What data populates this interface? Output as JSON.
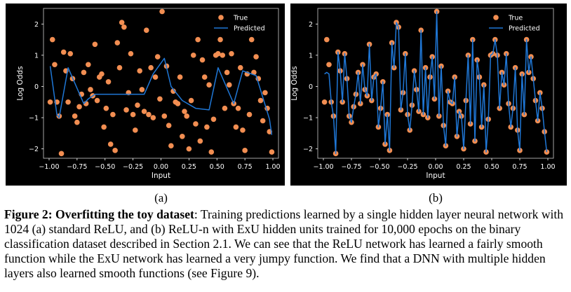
{
  "figure": {
    "caption_label": "Figure 2:",
    "caption_bold": "Overfitting the toy dataset",
    "caption_text": ": Training predictions learned by a single hidden layer neural network with 1024 (a) standard ReLU, and (b) ReLU-n with ExU hidden units trained for 10,000 epochs on the binary classification dataset described in Section 2.1. We can see that the ReLU network has learned a fairly smooth function while the ExU network has learned a very jumpy function. We find that a DNN with multiple hidden layers also learned smooth functions (see Figure 9)."
  },
  "colors": {
    "background": "#000000",
    "true_points": "#f28e52",
    "predicted_line": "#1f77d6",
    "text": "#ffffff"
  },
  "chart_data": [
    {
      "type": "scatter",
      "panel_label": "(a)",
      "xlabel": "Input",
      "ylabel": "Log Odds",
      "xlim": [
        -1.05,
        1.05
      ],
      "ylim": [
        -2.3,
        2.5
      ],
      "xticks": [
        -1.0,
        -0.75,
        -0.5,
        -0.25,
        0.0,
        0.25,
        0.5,
        0.75,
        1.0
      ],
      "xtick_labels": [
        "−1.00",
        "−0.75",
        "−0.50",
        "−0.25",
        "0.00",
        "0.25",
        "0.50",
        "0.75",
        "1.00"
      ],
      "yticks": [
        -2,
        -1,
        0,
        1,
        2
      ],
      "ytick_labels": [
        "−2",
        "−1",
        "0",
        "1",
        "2"
      ],
      "legend": {
        "placement": "top-right",
        "entries": [
          "True",
          "Predicted"
        ]
      },
      "series": [
        {
          "name": "True",
          "kind": "points",
          "x": [
            -0.99,
            -0.97,
            -0.95,
            -0.93,
            -0.91,
            -0.89,
            -0.87,
            -0.85,
            -0.83,
            -0.81,
            -0.79,
            -0.77,
            -0.75,
            -0.73,
            -0.71,
            -0.69,
            -0.67,
            -0.65,
            -0.63,
            -0.61,
            -0.59,
            -0.57,
            -0.55,
            -0.53,
            -0.51,
            -0.49,
            -0.47,
            -0.45,
            -0.43,
            -0.41,
            -0.39,
            -0.37,
            -0.35,
            -0.33,
            -0.31,
            -0.29,
            -0.27,
            -0.25,
            -0.23,
            -0.21,
            -0.19,
            -0.17,
            -0.15,
            -0.13,
            -0.11,
            -0.09,
            -0.07,
            -0.05,
            -0.03,
            -0.01,
            0.01,
            0.03,
            0.05,
            0.07,
            0.09,
            0.11,
            0.13,
            0.15,
            0.17,
            0.19,
            0.21,
            0.23,
            0.25,
            0.27,
            0.29,
            0.31,
            0.33,
            0.35,
            0.37,
            0.39,
            0.41,
            0.43,
            0.45,
            0.47,
            0.49,
            0.51,
            0.53,
            0.55,
            0.57,
            0.59,
            0.61,
            0.63,
            0.65,
            0.67,
            0.69,
            0.71,
            0.73,
            0.75,
            0.77,
            0.79,
            0.81,
            0.83,
            0.85,
            0.87,
            0.89,
            0.91,
            0.93,
            0.95,
            0.97,
            0.99
          ],
          "y": [
            -0.5,
            1.5,
            0.7,
            -0.5,
            -0.95,
            -2.15,
            1.1,
            0.5,
            -0.5,
            1.05,
            0.25,
            -0.95,
            -1.15,
            -0.65,
            -0.25,
            0.45,
            -0.55,
            0.7,
            -0.1,
            -0.3,
            1.35,
            -0.45,
            0.3,
            0.4,
            -1.3,
            -0.7,
            0.15,
            -1.85,
            -0.9,
            -2.05,
            1.4,
            0.6,
            2.05,
            1.9,
            -0.75,
            -0.2,
            1.05,
            -0.9,
            -1.4,
            -0.6,
            0.5,
            -0.1,
            -0.8,
            1.8,
            -0.9,
            0.6,
            -1.0,
            0.3,
            0.95,
            -0.4,
            2.4,
            -0.95,
            0.65,
            -1.25,
            -1.9,
            -0.15,
            -0.5,
            -0.55,
            0.3,
            -1.6,
            -0.8,
            -0.95,
            -2.0,
            -0.45,
            1.0,
            -1.2,
            1.5,
            -1.75,
            0.85,
            0.3,
            -1.3,
            0.05,
            -2.1,
            -1.05,
            1.0,
            1.05,
            1.5,
            1.0,
            -0.7,
            0.45,
            0.05,
            1.05,
            -0.55,
            -1.3,
            -0.7,
            0.6,
            -1.4,
            -2.05,
            0.4,
            -0.9,
            1.5,
            0.45,
            0.95,
            0.25,
            -0.45,
            -1.1,
            -0.2,
            -0.7,
            -1.45,
            -2.1
          ]
        },
        {
          "name": "Predicted",
          "kind": "line",
          "x": [
            -0.99,
            -0.93,
            -0.91,
            -0.83,
            -0.69,
            -0.65,
            -0.59,
            -0.51,
            -0.15,
            -0.07,
            0.03,
            0.09,
            0.19,
            0.31,
            0.43,
            0.51,
            0.65,
            0.73,
            0.85,
            0.91,
            0.97,
            0.99
          ],
          "y": [
            0.65,
            -0.9,
            -1.0,
            0.6,
            -0.55,
            -0.4,
            -0.25,
            -0.25,
            -0.25,
            0.4,
            0.9,
            0.0,
            -0.45,
            -0.7,
            -0.75,
            0.6,
            -0.55,
            0.5,
            0.35,
            -0.35,
            -1.05,
            -1.55
          ]
        }
      ]
    },
    {
      "type": "scatter",
      "panel_label": "(b)",
      "xlabel": "Input",
      "ylabel": "Log Odds",
      "xlim": [
        -1.05,
        1.05
      ],
      "ylim": [
        -2.3,
        2.5
      ],
      "xticks": [
        -1.0,
        -0.75,
        -0.5,
        -0.25,
        0.0,
        0.25,
        0.5,
        0.75,
        1.0
      ],
      "xtick_labels": [
        "−1.00",
        "−0.75",
        "−0.50",
        "−0.25",
        "0.00",
        "0.25",
        "0.50",
        "0.75",
        "1.00"
      ],
      "yticks": [
        -2,
        -1,
        0,
        1,
        2
      ],
      "ytick_labels": [
        "−2",
        "−1",
        "0",
        "1",
        "2"
      ],
      "legend": {
        "placement": "top-right",
        "entries": [
          "True",
          "Predicted"
        ]
      },
      "series": [
        {
          "name": "True",
          "kind": "points",
          "x": [
            -0.99,
            -0.97,
            -0.95,
            -0.93,
            -0.91,
            -0.89,
            -0.87,
            -0.85,
            -0.83,
            -0.81,
            -0.79,
            -0.77,
            -0.75,
            -0.73,
            -0.71,
            -0.69,
            -0.67,
            -0.65,
            -0.63,
            -0.61,
            -0.59,
            -0.57,
            -0.55,
            -0.53,
            -0.51,
            -0.49,
            -0.47,
            -0.45,
            -0.43,
            -0.41,
            -0.39,
            -0.37,
            -0.35,
            -0.33,
            -0.31,
            -0.29,
            -0.27,
            -0.25,
            -0.23,
            -0.21,
            -0.19,
            -0.17,
            -0.15,
            -0.13,
            -0.11,
            -0.09,
            -0.07,
            -0.05,
            -0.03,
            -0.01,
            0.01,
            0.03,
            0.05,
            0.07,
            0.09,
            0.11,
            0.13,
            0.15,
            0.17,
            0.19,
            0.21,
            0.23,
            0.25,
            0.27,
            0.29,
            0.31,
            0.33,
            0.35,
            0.37,
            0.39,
            0.41,
            0.43,
            0.45,
            0.47,
            0.49,
            0.51,
            0.53,
            0.55,
            0.57,
            0.59,
            0.61,
            0.63,
            0.65,
            0.67,
            0.69,
            0.71,
            0.73,
            0.75,
            0.77,
            0.79,
            0.81,
            0.83,
            0.85,
            0.87,
            0.89,
            0.91,
            0.93,
            0.95,
            0.97,
            0.99
          ],
          "y": [
            -0.5,
            1.5,
            0.7,
            -0.5,
            -0.95,
            -2.15,
            1.1,
            0.5,
            -0.5,
            1.05,
            0.25,
            -0.95,
            -1.15,
            -0.65,
            -0.25,
            0.45,
            -0.55,
            0.7,
            -0.1,
            -0.3,
            1.35,
            -0.45,
            0.3,
            0.4,
            -1.3,
            -0.7,
            0.15,
            -1.85,
            -0.9,
            -2.05,
            1.4,
            0.6,
            2.05,
            1.9,
            -0.75,
            -0.2,
            1.05,
            -0.9,
            -1.4,
            -0.6,
            0.5,
            -0.1,
            -0.8,
            1.8,
            -0.9,
            0.6,
            -1.0,
            0.3,
            0.95,
            -0.4,
            2.4,
            -0.95,
            0.65,
            -1.25,
            -1.9,
            -0.15,
            -0.5,
            -0.55,
            0.3,
            -1.6,
            -0.8,
            -0.95,
            -2.0,
            -0.45,
            1.0,
            -1.2,
            1.5,
            -1.75,
            0.85,
            0.3,
            -1.3,
            0.05,
            -2.1,
            -1.05,
            1.0,
            1.05,
            1.5,
            1.0,
            -0.7,
            0.45,
            0.05,
            1.05,
            -0.55,
            -1.3,
            -0.7,
            0.6,
            -1.4,
            -2.05,
            0.4,
            -0.9,
            1.5,
            0.45,
            0.95,
            0.25,
            -0.45,
            -1.1,
            -0.2,
            -0.7,
            -1.45,
            -2.1
          ]
        },
        {
          "name": "Predicted",
          "kind": "line",
          "x": [
            -0.99,
            -0.97,
            -0.95,
            -0.93,
            -0.91,
            -0.89,
            -0.87,
            -0.85,
            -0.83,
            -0.81,
            -0.79,
            -0.77,
            -0.75,
            -0.73,
            -0.71,
            -0.69,
            -0.67,
            -0.65,
            -0.63,
            -0.61,
            -0.59,
            -0.57,
            -0.55,
            -0.53,
            -0.51,
            -0.49,
            -0.47,
            -0.45,
            -0.43,
            -0.41,
            -0.39,
            -0.37,
            -0.35,
            -0.33,
            -0.31,
            -0.29,
            -0.27,
            -0.25,
            -0.23,
            -0.21,
            -0.19,
            -0.17,
            -0.15,
            -0.13,
            -0.11,
            -0.09,
            -0.07,
            -0.05,
            -0.03,
            -0.01,
            0.01,
            0.03,
            0.05,
            0.07,
            0.09,
            0.11,
            0.13,
            0.15,
            0.17,
            0.19,
            0.21,
            0.23,
            0.25,
            0.27,
            0.29,
            0.31,
            0.33,
            0.35,
            0.37,
            0.39,
            0.41,
            0.43,
            0.45,
            0.47,
            0.49,
            0.51,
            0.53,
            0.55,
            0.57,
            0.59,
            0.61,
            0.63,
            0.65,
            0.67,
            0.69,
            0.71,
            0.73,
            0.75,
            0.77,
            0.79,
            0.81,
            0.83,
            0.85,
            0.87,
            0.89,
            0.91,
            0.93,
            0.95,
            0.97,
            0.99
          ],
          "y": [
            0.4,
            0.45,
            0.4,
            -0.5,
            -0.95,
            -2.15,
            1.1,
            0.5,
            -0.5,
            1.05,
            0.25,
            -0.95,
            -1.15,
            -0.65,
            -0.25,
            0.45,
            -0.55,
            0.7,
            -0.1,
            -0.3,
            1.35,
            -0.45,
            0.3,
            0.4,
            -1.3,
            -0.7,
            0.15,
            -1.85,
            -0.9,
            -2.05,
            1.4,
            0.6,
            2.05,
            1.9,
            -0.75,
            -0.2,
            1.05,
            -0.9,
            -1.4,
            -0.6,
            0.5,
            -0.1,
            -0.8,
            1.8,
            -0.9,
            0.6,
            -1.0,
            0.3,
            0.95,
            -0.4,
            2.4,
            -0.95,
            0.65,
            -1.25,
            -1.9,
            -0.15,
            -0.5,
            -0.55,
            0.3,
            -1.6,
            -0.8,
            -0.95,
            -2.0,
            -0.45,
            1.0,
            -1.2,
            1.5,
            -1.75,
            0.85,
            0.3,
            -1.3,
            0.05,
            -2.1,
            -1.05,
            1.0,
            1.05,
            1.5,
            1.0,
            -0.7,
            0.45,
            0.05,
            1.05,
            -0.55,
            -1.3,
            -0.7,
            0.6,
            -1.4,
            -2.05,
            0.4,
            -0.9,
            1.5,
            0.45,
            0.95,
            0.25,
            -0.45,
            -1.1,
            -0.2,
            -0.7,
            -1.45,
            -2.1
          ]
        }
      ]
    }
  ]
}
